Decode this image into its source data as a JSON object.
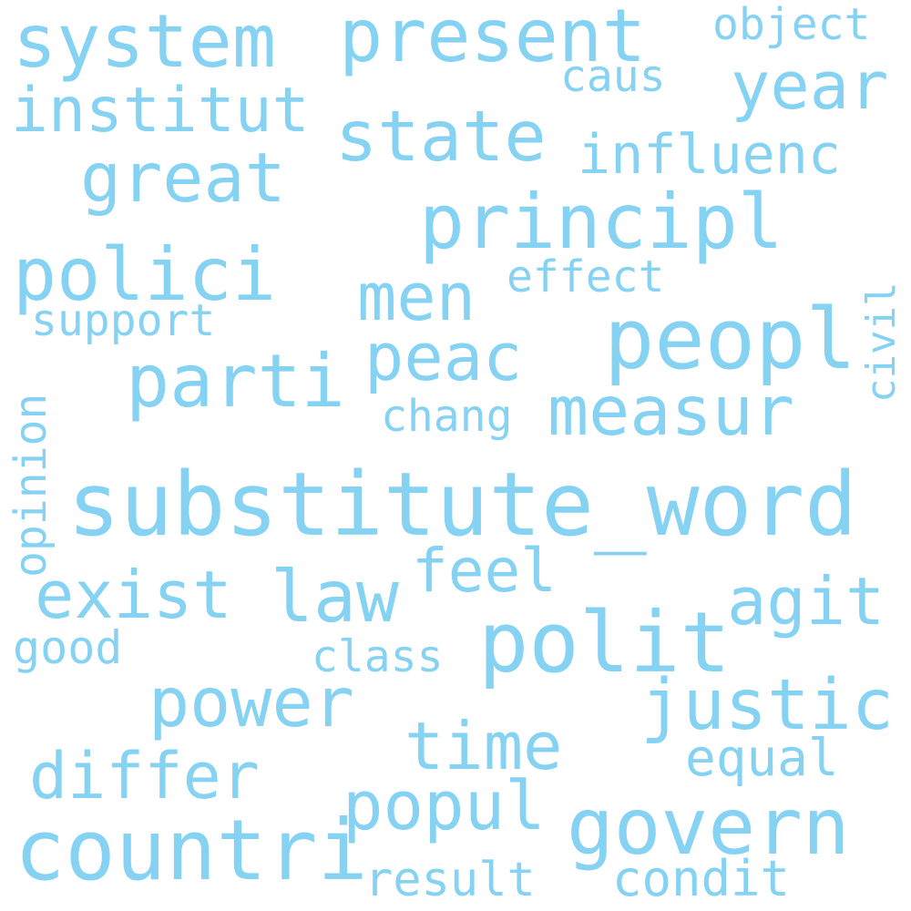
{
  "word_color": "#86d2f2",
  "background": "#ffffff",
  "words": {
    "substitute_word": "substitute_word",
    "peopl": "peopl",
    "polit": "polit",
    "countri": "countri",
    "govern": "govern",
    "principl": "principl",
    "system": "system",
    "present": "present",
    "polici": "polici",
    "parti": "parti",
    "state": "state",
    "justic": "justic",
    "measur": "measur",
    "power": "power",
    "great": "great",
    "institut": "institut",
    "exist": "exist",
    "law": "law",
    "popul": "popul",
    "differ": "differ",
    "agit": "agit",
    "peac": "peac",
    "year": "year",
    "time": "time",
    "men": "men",
    "influenc": "influenc",
    "feel": "feel",
    "equal": "equal",
    "condit": "condit",
    "result": "result",
    "class": "class",
    "chang": "chang",
    "effect": "effect",
    "support": "support",
    "good": "good",
    "caus": "caus",
    "object": "object",
    "civil": "civil",
    "opinion": "opinion"
  }
}
